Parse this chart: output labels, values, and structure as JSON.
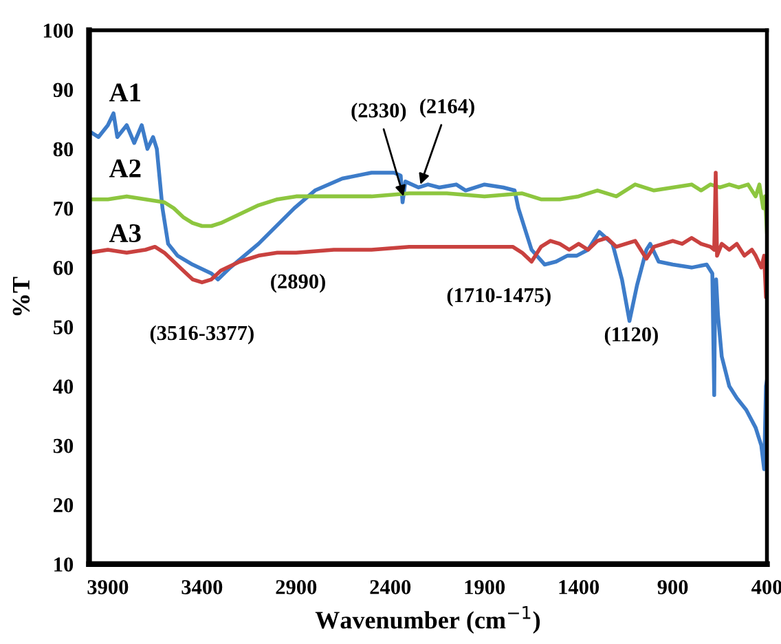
{
  "chart_data": {
    "type": "line",
    "xlabel": "Wavenumber (cm$^{−1}$)",
    "ylabel": "%T",
    "xlim": [
      4000,
      400
    ],
    "xticks": [
      3900,
      3400,
      2900,
      2400,
      1900,
      1400,
      900,
      400
    ],
    "ylim": [
      10,
      100
    ],
    "yticks": [
      10,
      20,
      30,
      40,
      50,
      60,
      70,
      80,
      90,
      100
    ],
    "grid": false,
    "legend": false,
    "marker": "none",
    "line_style": "solid",
    "series": [
      {
        "name": "A1",
        "color": "#3d7cc9",
        "x": [
          4000,
          3950,
          3900,
          3870,
          3850,
          3800,
          3760,
          3720,
          3690,
          3660,
          3640,
          3610,
          3580,
          3530,
          3450,
          3350,
          3315,
          3250,
          3100,
          2910,
          2800,
          2655,
          2500,
          2380,
          2345,
          2335,
          2320,
          2250,
          2200,
          2140,
          2050,
          2000,
          1900,
          1800,
          1740,
          1720,
          1650,
          1580,
          1520,
          1460,
          1410,
          1350,
          1290,
          1220,
          1170,
          1130,
          1090,
          1040,
          1020,
          975,
          900,
          800,
          720,
          690,
          680,
          675,
          670,
          660,
          640,
          600,
          560,
          510,
          460,
          430,
          415,
          405,
          400
        ],
        "values": [
          83,
          82,
          84,
          86,
          82,
          84,
          81,
          84,
          80,
          82,
          80,
          70,
          64,
          62,
          60.5,
          59,
          58,
          60,
          64,
          70,
          73,
          75,
          76,
          76,
          75.5,
          71,
          74.5,
          73.5,
          74,
          73.5,
          74,
          73,
          74,
          73.5,
          73,
          70,
          63,
          60.5,
          61,
          62,
          62,
          63,
          66,
          64,
          58,
          51,
          57,
          63,
          64,
          61,
          60.5,
          60,
          60.5,
          59,
          38.5,
          57,
          58,
          52,
          45,
          40,
          38,
          36,
          33,
          30,
          26,
          40,
          41
        ]
      },
      {
        "name": "A2",
        "color": "#8dc63f",
        "x": [
          4000,
          3900,
          3800,
          3700,
          3600,
          3550,
          3500,
          3450,
          3400,
          3350,
          3300,
          3200,
          3100,
          3000,
          2900,
          2700,
          2500,
          2300,
          2100,
          1900,
          1700,
          1600,
          1500,
          1400,
          1300,
          1200,
          1100,
          1000,
          900,
          800,
          750,
          700,
          650,
          600,
          550,
          500,
          460,
          440,
          420,
          410,
          400
        ],
        "values": [
          71.5,
          71.5,
          72,
          71.5,
          71,
          70,
          68.5,
          67.5,
          67,
          67,
          67.5,
          69,
          70.5,
          71.5,
          72,
          72,
          72,
          72.5,
          72.5,
          72,
          72.5,
          71.5,
          71.5,
          72,
          73,
          72,
          74,
          73,
          73.5,
          74,
          73,
          74,
          73.5,
          74,
          73.5,
          74,
          72,
          74,
          70,
          72,
          66
        ]
      },
      {
        "name": "A3",
        "color": "#c9413f",
        "x": [
          4000,
          3900,
          3800,
          3700,
          3650,
          3600,
          3550,
          3500,
          3450,
          3400,
          3350,
          3300,
          3200,
          3100,
          3000,
          2900,
          2700,
          2500,
          2300,
          2100,
          1900,
          1750,
          1700,
          1650,
          1600,
          1550,
          1500,
          1450,
          1400,
          1350,
          1300,
          1250,
          1200,
          1150,
          1100,
          1040,
          1000,
          950,
          900,
          850,
          800,
          750,
          700,
          680,
          672,
          665,
          640,
          600,
          560,
          520,
          480,
          460,
          430,
          415,
          405,
          400
        ],
        "values": [
          62.5,
          63,
          62.5,
          63,
          63.5,
          62.5,
          61,
          59.5,
          58,
          57.5,
          58,
          59.5,
          61,
          62,
          62.5,
          62.5,
          63,
          63,
          63.5,
          63.5,
          63.5,
          63.5,
          62.5,
          61,
          63.5,
          64.5,
          64,
          63,
          64,
          63,
          64.5,
          65,
          63.5,
          64,
          64.5,
          61.5,
          63.5,
          64,
          64.5,
          64,
          65,
          64,
          63.5,
          63,
          76,
          62,
          64,
          63,
          64,
          62,
          63,
          62,
          60,
          62,
          55,
          58
        ]
      }
    ],
    "annotations": [
      {
        "text": "(3516-3377)",
        "x": 3400,
        "y": 58
      },
      {
        "text": "(2890)",
        "x": 2890,
        "y": 62.5
      },
      {
        "text": "(2330)",
        "x": 2330,
        "y": 72
      },
      {
        "text": "(2164)",
        "x": 2240,
        "y": 74
      },
      {
        "text": "(1710-1475)",
        "x": 1600,
        "y": 60.5
      },
      {
        "text": "(1120)",
        "x": 1130,
        "y": 51
      }
    ]
  }
}
